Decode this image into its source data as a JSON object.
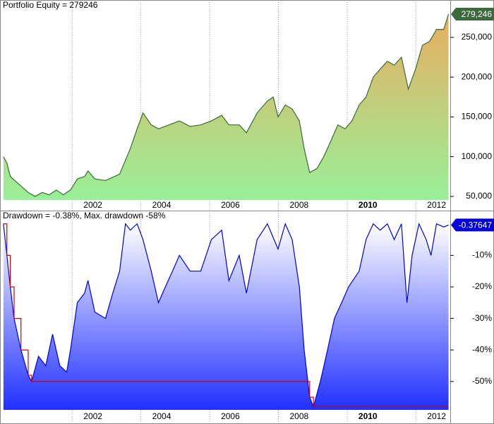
{
  "chart_data": [
    {
      "type": "area",
      "title": "Portfolio Equity = 279246",
      "x": [
        2000,
        2000.1,
        2000.2,
        2000.72,
        2000.92,
        2001.13,
        2001.33,
        2001.54,
        2001.74,
        2001.95,
        2002.15,
        2002.36,
        2002.46,
        2002.66,
        2002.97,
        2003.38,
        2003.69,
        2003.89,
        2004.06,
        2004.3,
        2004.51,
        2004.82,
        2005.12,
        2005.43,
        2005.74,
        2006.05,
        2006.35,
        2006.56,
        2006.86,
        2007.07,
        2007.38,
        2007.68,
        2007.85,
        2007.99,
        2008.2,
        2008.4,
        2008.61,
        2008.75,
        2008.91,
        2009.12,
        2009.32,
        2009.53,
        2009.73,
        2009.94,
        2010.14,
        2010.35,
        2010.55,
        2010.76,
        2010.96,
        2011.17,
        2011.37,
        2011.58,
        2011.68,
        2011.78,
        2011.99,
        2012.19,
        2012.4,
        2012.6,
        2012.81,
        2012.95
      ],
      "series": [
        {
          "color": "#3c6a3c",
          "fill": [
            "#e8ae60",
            "#98f098"
          ],
          "last_label": "279,246",
          "values": [
            100000,
            92000,
            75000,
            55000,
            50000,
            55000,
            52000,
            58000,
            52000,
            58000,
            72000,
            75000,
            82000,
            72000,
            70000,
            78000,
            110000,
            135000,
            155000,
            140000,
            135000,
            140000,
            145000,
            138000,
            140000,
            145000,
            152000,
            140000,
            140000,
            130000,
            155000,
            170000,
            175000,
            150000,
            165000,
            160000,
            145000,
            110000,
            80000,
            85000,
            100000,
            120000,
            140000,
            135000,
            145000,
            165000,
            175000,
            200000,
            210000,
            220000,
            215000,
            225000,
            205000,
            185000,
            210000,
            240000,
            245000,
            260000,
            260000,
            279246
          ]
        }
      ],
      "xlim": [
        1999.9,
        2013.0
      ],
      "xticks": [
        2002,
        2004,
        2006,
        2008,
        2010,
        2012
      ],
      "bold_xticks": [
        2010
      ],
      "ylim": [
        45500,
        297000
      ],
      "yticks": [
        {
          "value": 50000,
          "label": "50,000"
        },
        {
          "value": 100000,
          "label": "100,000"
        },
        {
          "value": 150000,
          "label": "150,000"
        },
        {
          "value": 200000,
          "label": "200,000"
        },
        {
          "value": 250000,
          "label": "250,000"
        }
      ],
      "grid": true
    },
    {
      "type": "area",
      "title": "Drawdown = -0.38%, Max. drawdown -58%",
      "x": [
        2000,
        2000.1,
        2000.2,
        2000.31,
        2000.51,
        2000.72,
        2000.82,
        2001.02,
        2001.23,
        2001.43,
        2001.64,
        2001.84,
        2001.95,
        2002.15,
        2002.36,
        2002.46,
        2002.66,
        2002.97,
        2003.18,
        2003.38,
        2003.55,
        2003.69,
        2003.89,
        2004.06,
        2004.3,
        2004.51,
        2004.71,
        2004.92,
        2005.12,
        2005.43,
        2005.74,
        2006.05,
        2006.35,
        2006.56,
        2006.86,
        2007.07,
        2007.38,
        2007.68,
        2007.99,
        2008.2,
        2008.4,
        2008.61,
        2008.75,
        2008.91,
        2009.02,
        2009.22,
        2009.43,
        2009.63,
        2009.84,
        2010.04,
        2010.35,
        2010.55,
        2010.76,
        2010.96,
        2011.17,
        2011.37,
        2011.58,
        2011.74,
        2011.89,
        2012.09,
        2012.3,
        2012.44,
        2012.6,
        2012.81,
        2012.95
      ],
      "series": [
        {
          "color": "#0000dd",
          "fill": [
            "#ffffff",
            "#2030ff"
          ],
          "last_label": "-0.37647",
          "values": [
            0,
            -10,
            -20,
            -30,
            -40,
            -48,
            -50,
            -42,
            -45,
            -35,
            -45,
            -47,
            -40,
            -25,
            -22,
            -18,
            -28,
            -30,
            -22,
            -15,
            0,
            -2,
            0,
            -5,
            -15,
            -25,
            -20,
            -15,
            -10,
            -15,
            -15,
            -5,
            -2,
            -18,
            -10,
            -22,
            -5,
            0,
            -8,
            0,
            -5,
            -20,
            -40,
            -55,
            -58,
            -50,
            -40,
            -30,
            -25,
            -20,
            -15,
            -5,
            0,
            -2,
            0,
            -5,
            0,
            -25,
            -10,
            0,
            -5,
            -10,
            0,
            -1,
            -0.37647
          ]
        },
        {
          "color": "#cc0000",
          "style": "step",
          "values": [
            0,
            -10,
            -20,
            -30,
            -40,
            -48,
            -50,
            -50,
            -50,
            -50,
            -50,
            -50,
            -50,
            -50,
            -50,
            -50,
            -50,
            -50,
            -50,
            -50,
            -50,
            -50,
            -50,
            -50,
            -50,
            -50,
            -50,
            -50,
            -50,
            -50,
            -50,
            -50,
            -50,
            -50,
            -50,
            -50,
            -50,
            -50,
            -50,
            -50,
            -50,
            -50,
            -50,
            -55,
            -58,
            -58,
            -58,
            -58,
            -58,
            -58,
            -58,
            -58,
            -58,
            -58,
            -58,
            -58,
            -58,
            -58,
            -58,
            -58,
            -58,
            -58,
            -58,
            -58,
            -58
          ]
        }
      ],
      "xlim": [
        1999.9,
        2013.0
      ],
      "xticks": [
        2002,
        2004,
        2006,
        2008,
        2010,
        2012
      ],
      "bold_xticks": [
        2010
      ],
      "ylim": [
        -59,
        4.2
      ],
      "yticks": [
        {
          "value": -10,
          "label": "-10%"
        },
        {
          "value": -20,
          "label": "-20%"
        },
        {
          "value": -30,
          "label": "-30%"
        },
        {
          "value": -40,
          "label": "-40%"
        },
        {
          "value": -50,
          "label": "-50%"
        }
      ],
      "grid": true
    }
  ]
}
